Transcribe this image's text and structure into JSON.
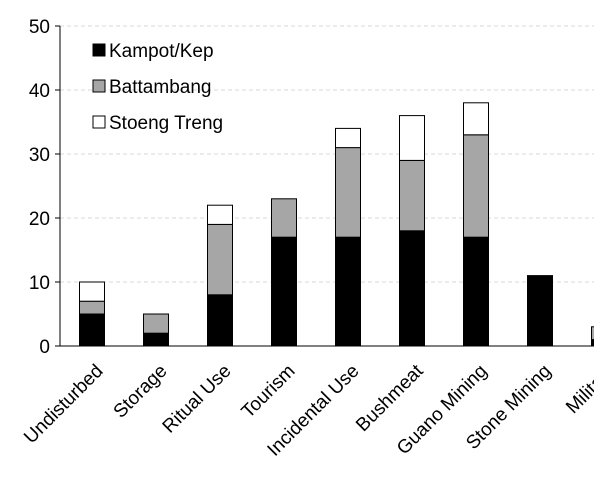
{
  "chart_data": {
    "type": "bar",
    "stacked": true,
    "categories": [
      "Undisturbed",
      "Storage",
      "Ritual Use",
      "Tourism",
      "Incidental Use",
      "Bushmeat",
      "Guano Mining",
      "Stone Mining",
      "Military"
    ],
    "series": [
      {
        "name": "Kampot/Kep",
        "values": [
          5,
          2,
          8,
          17,
          17,
          18,
          17,
          11,
          1
        ],
        "color": "#000000"
      },
      {
        "name": "Battambang",
        "values": [
          2,
          3,
          11,
          6,
          14,
          11,
          16,
          0,
          2
        ],
        "color": "#a6a6a6"
      },
      {
        "name": "Stoeng Treng",
        "values": [
          3,
          0,
          3,
          0,
          3,
          7,
          5,
          0,
          0
        ],
        "color": "#ffffff"
      }
    ],
    "ylim": [
      0,
      50
    ],
    "yticks": [
      0,
      10,
      20,
      30,
      40,
      50
    ],
    "grid": true,
    "legend_position": "top-left",
    "title": "",
    "xlabel": "",
    "ylabel": ""
  }
}
